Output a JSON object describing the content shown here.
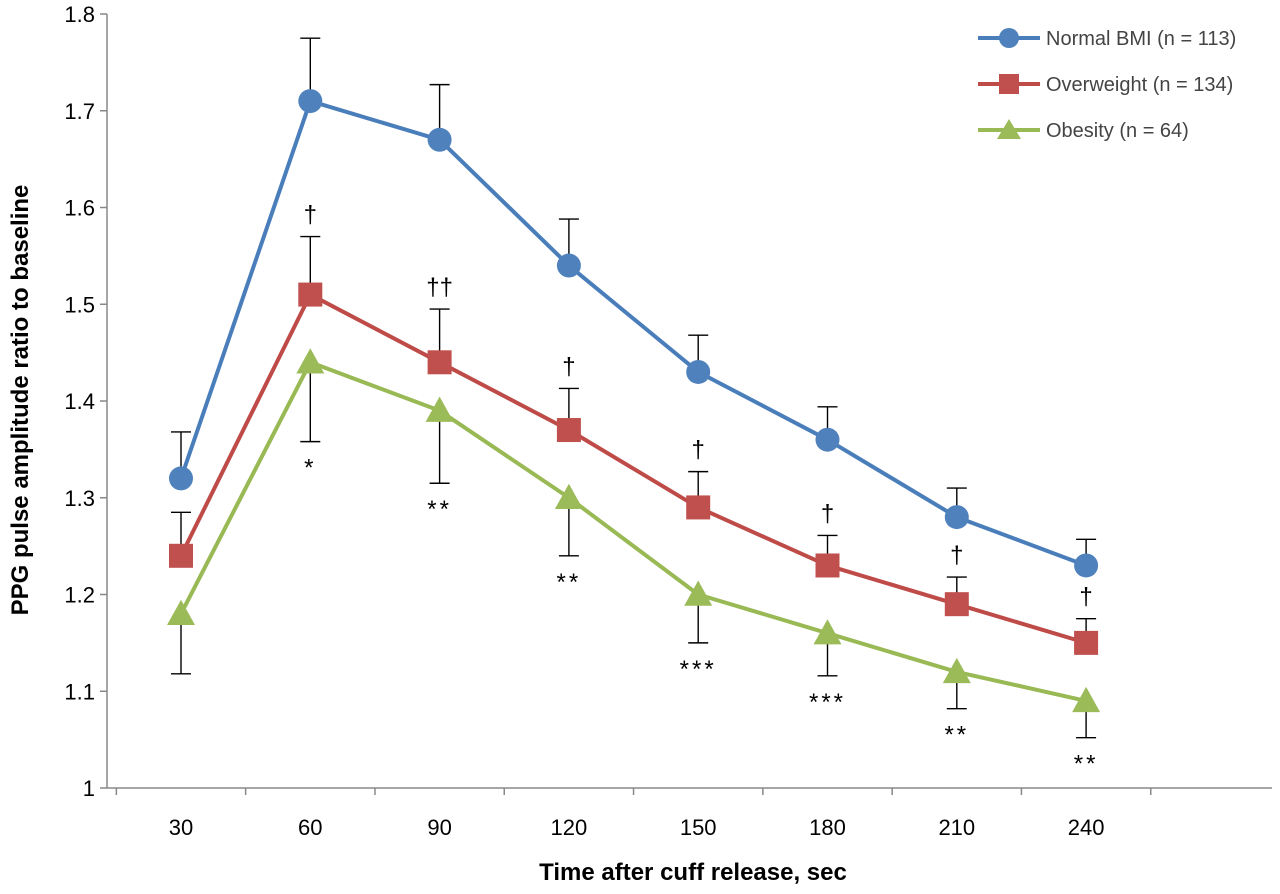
{
  "chart_data": {
    "type": "line",
    "xlabel": "Time after cuff release, sec",
    "ylabel": "PPG pulse amplitude ratio to baseline",
    "categories": [
      "30",
      "60",
      "90",
      "120",
      "150",
      "180",
      "210",
      "240"
    ],
    "ylim": [
      1,
      1.8
    ],
    "y_ticks": [
      "1",
      "1.1",
      "1.2",
      "1.3",
      "1.4",
      "1.5",
      "1.6",
      "1.7",
      "1.8"
    ],
    "y_tick_values": [
      1,
      1.1,
      1.2,
      1.3,
      1.4,
      1.5,
      1.6,
      1.7,
      1.8
    ],
    "grid": false,
    "legend_position": "top-right",
    "error_bars": "one-sided",
    "series": [
      {
        "name": "Normal BMI (n = 113)",
        "marker": "circle",
        "color": "#4a7ebb",
        "marker_color": "#4f81bd",
        "values": [
          1.32,
          1.71,
          1.67,
          1.54,
          1.43,
          1.36,
          1.28,
          1.23
        ],
        "error": [
          0.048,
          0.065,
          0.057,
          0.048,
          0.038,
          0.034,
          0.03,
          0.027
        ],
        "error_direction": "up"
      },
      {
        "name": "Overweight (n = 134)",
        "marker": "square",
        "color": "#be4b48",
        "marker_color": "#c0504d",
        "values": [
          1.24,
          1.51,
          1.44,
          1.37,
          1.29,
          1.23,
          1.19,
          1.15
        ],
        "error": [
          0.045,
          0.06,
          0.055,
          0.043,
          0.037,
          0.031,
          0.028,
          0.025
        ],
        "error_direction": "up"
      },
      {
        "name": "Obesity (n = 64)",
        "marker": "triangle",
        "color": "#98b954",
        "marker_color": "#9bbb59",
        "values": [
          1.18,
          1.44,
          1.39,
          1.3,
          1.2,
          1.16,
          1.12,
          1.09
        ],
        "error": [
          0.062,
          0.082,
          0.075,
          0.06,
          0.05,
          0.044,
          0.038,
          0.038
        ],
        "error_direction": "down"
      }
    ],
    "annotations_dagger": [
      "",
      "†",
      "††",
      "†",
      "†",
      "†",
      "†",
      "†"
    ],
    "annotations_star": [
      "",
      "*",
      "**",
      "**",
      "***",
      "***",
      "**",
      "**"
    ]
  }
}
